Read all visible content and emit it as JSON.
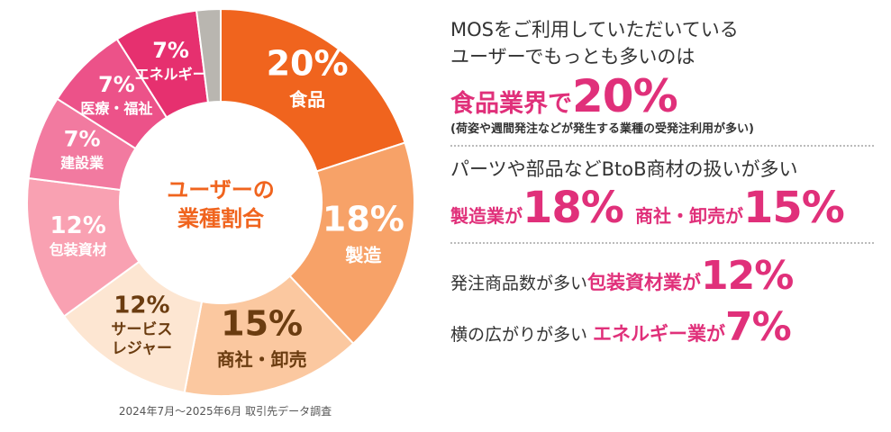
{
  "chart_data": {
    "type": "pie",
    "donut": true,
    "center_label": [
      "ユーザーの",
      "業種割合"
    ],
    "slices": [
      {
        "label": "食品",
        "value": 20,
        "display": "20%",
        "color": "#f0641e",
        "text_color": "#ffffff"
      },
      {
        "label": "製造",
        "value": 18,
        "display": "18%",
        "color": "#f7a268",
        "text_color": "#ffffff"
      },
      {
        "label": "商社・卸売",
        "value": 15,
        "display": "15%",
        "color": "#fbc8a0",
        "text_color": "#6b3c10"
      },
      {
        "label": "サービス\nレジャー",
        "value": 12,
        "display": "12%",
        "color": "#fde6d2",
        "text_color": "#6b3c10"
      },
      {
        "label": "包装資材",
        "value": 12,
        "display": "12%",
        "color": "#f9a1b2",
        "text_color": "#ffffff"
      },
      {
        "label": "建設業",
        "value": 7,
        "display": "7%",
        "color": "#f27aa0",
        "text_color": "#ffffff"
      },
      {
        "label": "医療・福祉",
        "value": 7,
        "display": "7%",
        "color": "#ec5289",
        "text_color": "#ffffff"
      },
      {
        "label": "エネルギー",
        "value": 7,
        "display": "7%",
        "color": "#e6306f",
        "text_color": "#ffffff"
      },
      {
        "label": "",
        "value": 2,
        "display": "",
        "color": "#b9b6b0",
        "text_color": "#ffffff"
      }
    ]
  },
  "source_note": "2024年7月〜2025年6月 取引先データ調査",
  "right": {
    "intro_line1": "MOSをご利用していただいている",
    "intro_line2": "ユーザーでもっとも多いのは",
    "hl1_label": "食品業界で",
    "hl1_value": "20%",
    "hl1_note": "(荷姿や週間発注などが発生する業種の受発注利用が多い)",
    "line2": "パーツや部品などBtoB商材の扱いが多い",
    "hl2a_label": "製造業が",
    "hl2a_value": "18%",
    "hl2b_label": "商社・卸売が",
    "hl2b_value": "15%",
    "line3_prefix": "発注商品数が多い",
    "line3_label": "包装資材業が",
    "line3_value": "12%",
    "line4_prefix": "横の広がりが多い",
    "line4_label": "エネルギー業が",
    "line4_value": "7%"
  }
}
